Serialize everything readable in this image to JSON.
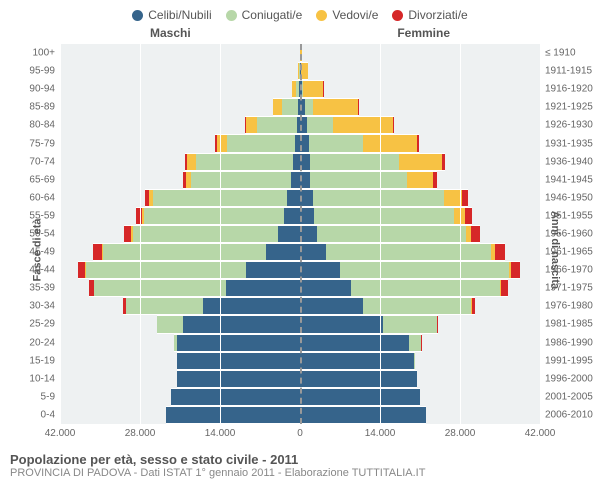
{
  "chart": {
    "type": "population-pyramid",
    "title": "Popolazione per età, sesso e stato civile - 2011",
    "subtitle": "PROVINCIA DI PADOVA - Dati ISTAT 1° gennaio 2011 - Elaborazione TUTTITALIA.IT",
    "left_heading": "Maschi",
    "right_heading": "Femmine",
    "y_title_left": "Fasce di età",
    "y_title_right": "Anni di nascita",
    "x_max": 42000,
    "x_ticks": [
      42000,
      28000,
      14000,
      0,
      14000,
      28000,
      42000
    ],
    "x_tick_labels": [
      "42.000",
      "28.000",
      "14.000",
      "0",
      "14.000",
      "28.000",
      "42.000"
    ],
    "colors": {
      "celibi": "#36648b",
      "coniugati": "#b7d7a8",
      "vedovi": "#f7c244",
      "divorziati": "#d62728",
      "plot_bg": "#eef1f2",
      "grid": "#ffffff"
    },
    "legend": [
      {
        "label": "Celibi/Nubili",
        "color": "#36648b"
      },
      {
        "label": "Coniugati/e",
        "color": "#b7d7a8"
      },
      {
        "label": "Vedovi/e",
        "color": "#f7c244"
      },
      {
        "label": "Divorziati/e",
        "color": "#d62728"
      }
    ],
    "rows": [
      {
        "age": "100+",
        "birth": "≤ 1910",
        "m": {
          "c": 10,
          "co": 0,
          "v": 60,
          "d": 0
        },
        "f": {
          "c": 30,
          "co": 0,
          "v": 400,
          "d": 0
        }
      },
      {
        "age": "95-99",
        "birth": "1911-1915",
        "m": {
          "c": 60,
          "co": 80,
          "v": 200,
          "d": 0
        },
        "f": {
          "c": 150,
          "co": 50,
          "v": 1200,
          "d": 0
        }
      },
      {
        "age": "90-94",
        "birth": "1916-1920",
        "m": {
          "c": 150,
          "co": 500,
          "v": 700,
          "d": 20
        },
        "f": {
          "c": 400,
          "co": 200,
          "v": 3500,
          "d": 30
        }
      },
      {
        "age": "85-89",
        "birth": "1921-1925",
        "m": {
          "c": 300,
          "co": 2800,
          "v": 1600,
          "d": 50
        },
        "f": {
          "c": 900,
          "co": 1300,
          "v": 8000,
          "d": 80
        }
      },
      {
        "age": "80-84",
        "birth": "1926-1930",
        "m": {
          "c": 500,
          "co": 7000,
          "v": 2000,
          "d": 120
        },
        "f": {
          "c": 1300,
          "co": 4500,
          "v": 10500,
          "d": 180
        }
      },
      {
        "age": "75-79",
        "birth": "1931-1935",
        "m": {
          "c": 800,
          "co": 12000,
          "v": 1800,
          "d": 200
        },
        "f": {
          "c": 1500,
          "co": 9500,
          "v": 9500,
          "d": 300
        }
      },
      {
        "age": "70-74",
        "birth": "1936-1940",
        "m": {
          "c": 1200,
          "co": 17000,
          "v": 1500,
          "d": 350
        },
        "f": {
          "c": 1800,
          "co": 15500,
          "v": 7500,
          "d": 500
        }
      },
      {
        "age": "65-69",
        "birth": "1941-1945",
        "m": {
          "c": 1500,
          "co": 17500,
          "v": 900,
          "d": 500
        },
        "f": {
          "c": 1800,
          "co": 17000,
          "v": 4500,
          "d": 700
        }
      },
      {
        "age": "60-64",
        "birth": "1946-1950",
        "m": {
          "c": 2200,
          "co": 23500,
          "v": 700,
          "d": 800
        },
        "f": {
          "c": 2200,
          "co": 23000,
          "v": 3200,
          "d": 1000
        }
      },
      {
        "age": "55-59",
        "birth": "1951-1955",
        "m": {
          "c": 2800,
          "co": 24500,
          "v": 400,
          "d": 1000
        },
        "f": {
          "c": 2500,
          "co": 24500,
          "v": 1800,
          "d": 1300
        }
      },
      {
        "age": "50-54",
        "birth": "1956-1960",
        "m": {
          "c": 3800,
          "co": 25500,
          "v": 250,
          "d": 1200
        },
        "f": {
          "c": 3000,
          "co": 26000,
          "v": 1000,
          "d": 1500
        }
      },
      {
        "age": "45-49",
        "birth": "1961-1965",
        "m": {
          "c": 6000,
          "co": 28500,
          "v": 180,
          "d": 1500
        },
        "f": {
          "c": 4500,
          "co": 29000,
          "v": 600,
          "d": 1800
        }
      },
      {
        "age": "40-44",
        "birth": "1966-1970",
        "m": {
          "c": 9500,
          "co": 28000,
          "v": 120,
          "d": 1300
        },
        "f": {
          "c": 7000,
          "co": 29500,
          "v": 350,
          "d": 1700
        }
      },
      {
        "age": "35-39",
        "birth": "1971-1975",
        "m": {
          "c": 13000,
          "co": 23000,
          "v": 60,
          "d": 900
        },
        "f": {
          "c": 9000,
          "co": 26000,
          "v": 180,
          "d": 1200
        }
      },
      {
        "age": "30-34",
        "birth": "1976-1980",
        "m": {
          "c": 17000,
          "co": 13500,
          "v": 20,
          "d": 400
        },
        "f": {
          "c": 11000,
          "co": 19000,
          "v": 80,
          "d": 600
        }
      },
      {
        "age": "25-29",
        "birth": "1981-1985",
        "m": {
          "c": 20500,
          "co": 4500,
          "v": 0,
          "d": 100
        },
        "f": {
          "c": 14500,
          "co": 9500,
          "v": 20,
          "d": 200
        }
      },
      {
        "age": "20-24",
        "birth": "1986-1990",
        "m": {
          "c": 21500,
          "co": 600,
          "v": 0,
          "d": 20
        },
        "f": {
          "c": 19000,
          "co": 2200,
          "v": 0,
          "d": 50
        }
      },
      {
        "age": "15-19",
        "birth": "1991-1995",
        "m": {
          "c": 21500,
          "co": 30,
          "v": 0,
          "d": 0
        },
        "f": {
          "c": 20000,
          "co": 200,
          "v": 0,
          "d": 0
        }
      },
      {
        "age": "10-14",
        "birth": "1996-2000",
        "m": {
          "c": 21500,
          "co": 0,
          "v": 0,
          "d": 0
        },
        "f": {
          "c": 20500,
          "co": 0,
          "v": 0,
          "d": 0
        }
      },
      {
        "age": "5-9",
        "birth": "2001-2005",
        "m": {
          "c": 22500,
          "co": 0,
          "v": 0,
          "d": 0
        },
        "f": {
          "c": 21000,
          "co": 0,
          "v": 0,
          "d": 0
        }
      },
      {
        "age": "0-4",
        "birth": "2006-2010",
        "m": {
          "c": 23500,
          "co": 0,
          "v": 0,
          "d": 0
        },
        "f": {
          "c": 22000,
          "co": 0,
          "v": 0,
          "d": 0
        }
      }
    ]
  }
}
